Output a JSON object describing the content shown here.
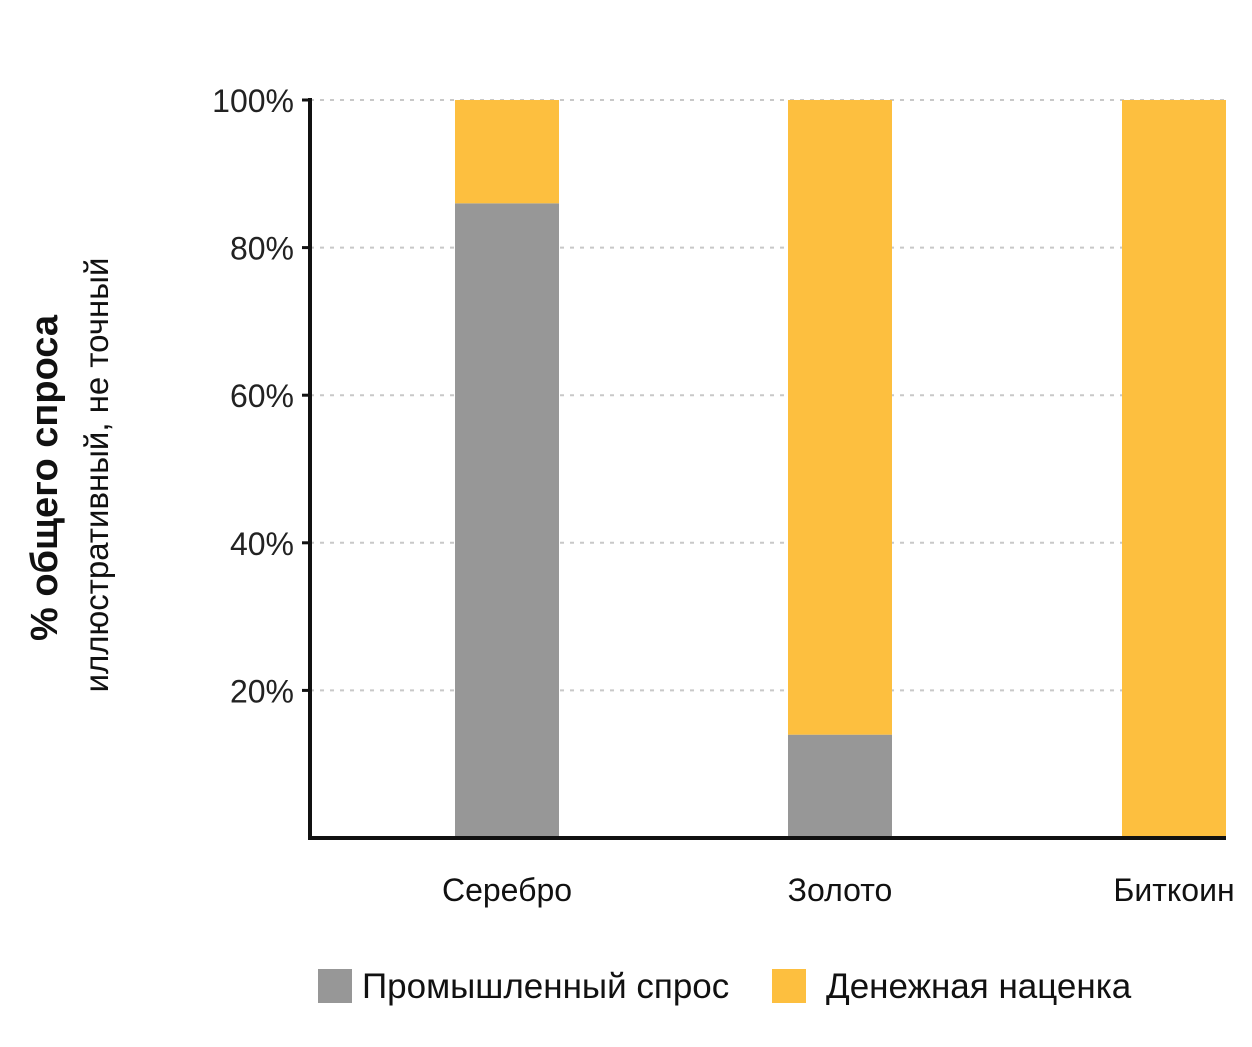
{
  "chart_data": {
    "type": "bar",
    "stacked": true,
    "categories": [
      "Серебро",
      "Золото",
      "Биткоин"
    ],
    "series": [
      {
        "name": "Промышленный спрос",
        "color": "#979797",
        "values": [
          86,
          14,
          0
        ]
      },
      {
        "name": "Денежная наценка",
        "color": "#fdbf3f",
        "values": [
          14,
          86,
          100
        ]
      }
    ],
    "ylabel": "% общего спроса",
    "ysublabel": "иллюстративный, не точный",
    "ylim": [
      0,
      100
    ],
    "yticks": [
      20,
      40,
      60,
      80,
      100
    ],
    "ytick_labels": [
      "20%",
      "40%",
      "60%",
      "80%",
      "100%"
    ],
    "grid": true,
    "legend_position": "bottom"
  }
}
